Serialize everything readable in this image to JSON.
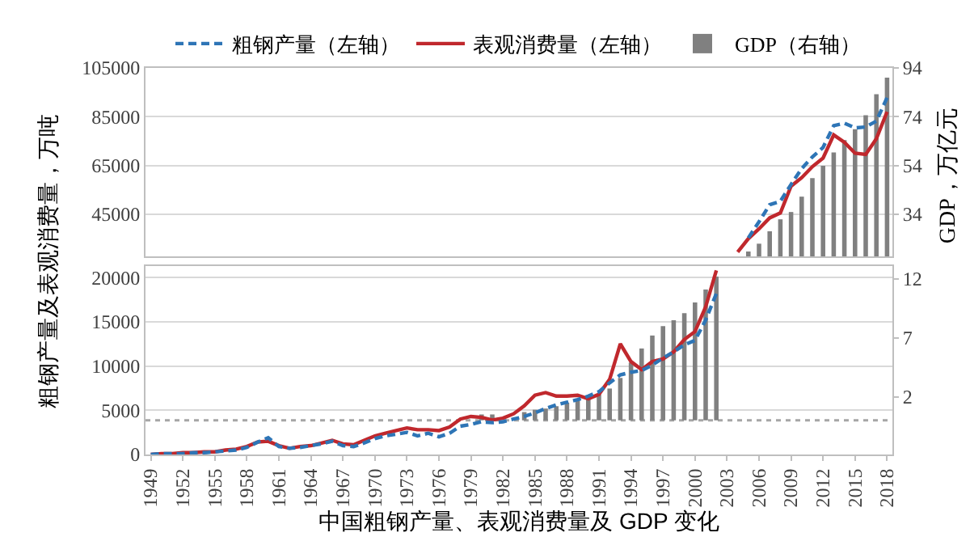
{
  "chart_data": [
    {
      "type": "line",
      "ylabel": "粗钢产量及表观消费量，万吨",
      "y2label": "GDP，万亿元",
      "legend": "top",
      "grid": "y",
      "tick_labels": "y",
      "categories": [
        "1949",
        null,
        null,
        "1952",
        null,
        null,
        "1955",
        null,
        null,
        "1958",
        null,
        null,
        "1961",
        null,
        null,
        "1964",
        null,
        null,
        "1967",
        null,
        null,
        "1970",
        null,
        null,
        "1973",
        null,
        null,
        "1976",
        null,
        null,
        "1979",
        null,
        null,
        "1982",
        null,
        null,
        "1985",
        null,
        null,
        "1988",
        null,
        null,
        "1991",
        null,
        null,
        "1994",
        null,
        null,
        "1997",
        null,
        null,
        "2000",
        null,
        null,
        "2003",
        null,
        null,
        "2006",
        null,
        null,
        "2009",
        null,
        null,
        "2012",
        null,
        null,
        "2015",
        null,
        null,
        "2018"
      ],
      "ylim": [
        27700,
        105000
      ],
      "yticks": [
        45000,
        65000,
        85000,
        105000
      ],
      "y2lim": [
        16.7,
        94
      ],
      "y2ticks": [
        34,
        54,
        74,
        94
      ],
      "series": [
        {
          "name": "粗钢产量（左轴）",
          "color": "#2e75b6",
          "line_style": "dashed",
          "values": [
            null,
            null,
            null,
            null,
            null,
            null,
            null,
            null,
            null,
            null,
            null,
            null,
            null,
            null,
            null,
            null,
            null,
            null,
            null,
            null,
            null,
            null,
            null,
            null,
            null,
            null,
            null,
            null,
            null,
            null,
            null,
            null,
            null,
            null,
            null,
            null,
            null,
            null,
            null,
            null,
            null,
            null,
            null,
            null,
            null,
            null,
            null,
            null,
            null,
            null,
            null,
            null,
            null,
            null,
            null,
            null,
            35300,
            41900,
            48900,
            50300,
            57200,
            63700,
            68500,
            72400,
            81300,
            82300,
            80400,
            80800,
            83200,
            92800
          ]
        },
        {
          "name": "表观消费量（左轴）",
          "color": "#c0282d",
          "line_style": "solid",
          "values": [
            null,
            null,
            null,
            null,
            null,
            null,
            null,
            null,
            null,
            null,
            null,
            null,
            null,
            null,
            null,
            null,
            null,
            null,
            null,
            null,
            null,
            null,
            null,
            null,
            null,
            null,
            null,
            null,
            null,
            null,
            null,
            null,
            null,
            null,
            null,
            null,
            null,
            null,
            null,
            null,
            null,
            null,
            null,
            null,
            null,
            null,
            null,
            null,
            null,
            null,
            null,
            null,
            null,
            null,
            null,
            29500,
            35000,
            39000,
            43500,
            45500,
            56500,
            60000,
            64500,
            68000,
            77500,
            74500,
            70000,
            69500,
            76000,
            87000
          ]
        },
        {
          "name": "GDP（右轴）",
          "type": "bar",
          "axis": "y2",
          "color": "#808080",
          "values": [
            null,
            null,
            null,
            null,
            null,
            null,
            null,
            null,
            null,
            null,
            null,
            null,
            null,
            null,
            null,
            null,
            null,
            null,
            null,
            null,
            null,
            null,
            null,
            null,
            null,
            null,
            null,
            null,
            null,
            null,
            null,
            null,
            null,
            null,
            null,
            null,
            null,
            null,
            null,
            null,
            null,
            null,
            null,
            null,
            null,
            null,
            null,
            null,
            null,
            null,
            null,
            null,
            null,
            null,
            null,
            null,
            18.7,
            21.9,
            27.0,
            31.9,
            34.9,
            41.2,
            48.8,
            53.9,
            59.3,
            64.4,
            68.9,
            74.6,
            83.2,
            90.0
          ]
        }
      ]
    },
    {
      "type": "line",
      "xlabel": "中国粗钢产量、表观消费量及 GDP 变化",
      "grid": "y",
      "categories": [
        "1949",
        null,
        null,
        "1952",
        null,
        null,
        "1955",
        null,
        null,
        "1958",
        null,
        null,
        "1961",
        null,
        null,
        "1964",
        null,
        null,
        "1967",
        null,
        null,
        "1970",
        null,
        null,
        "1973",
        null,
        null,
        "1976",
        null,
        null,
        "1979",
        null,
        null,
        "1982",
        null,
        null,
        "1985",
        null,
        null,
        "1988",
        null,
        null,
        "1991",
        null,
        null,
        "1994",
        null,
        null,
        "1997",
        null,
        null,
        "2000",
        null,
        null,
        "2003",
        null,
        null,
        "2006",
        null,
        null,
        "2009",
        null,
        null,
        "2012",
        null,
        null,
        "2015",
        null,
        null,
        "2018"
      ],
      "ylim": [
        0,
        21300
      ],
      "yticks": [
        0,
        5000,
        10000,
        15000,
        20000
      ],
      "y2lim": [
        -2.9,
        13.1
      ],
      "y2ticks": [
        2,
        7,
        12
      ],
      "ref_lines": [
        {
          "axis": "y2",
          "value": 0,
          "color": "#a6a6a6",
          "line_style": "dotted"
        }
      ],
      "series": [
        {
          "color": "#2e75b6",
          "line_style": "dashed",
          "values": [
            0,
            100,
            100,
            100,
            200,
            200,
            300,
            400,
            500,
            800,
            1400,
            1900,
            900,
            700,
            800,
            1000,
            1200,
            1500,
            1000,
            900,
            1300,
            1800,
            2100,
            2300,
            2500,
            2100,
            2400,
            2000,
            2400,
            3200,
            3400,
            3700,
            3600,
            3700,
            4000,
            4300,
            4700,
            5200,
            5600,
            5900,
            6200,
            6600,
            7100,
            8100,
            9000,
            9300,
            9500,
            10100,
            10900,
            11600,
            12400,
            12900,
            15200,
            18200,
            null,
            null,
            null,
            null,
            null,
            null,
            null,
            null,
            null,
            null,
            null,
            null,
            null,
            null,
            null,
            null
          ]
        },
        {
          "color": "#c0282d",
          "line_style": "solid",
          "values": [
            0,
            100,
            100,
            200,
            200,
            300,
            300,
            500,
            600,
            900,
            1400,
            1500,
            1000,
            700,
            900,
            1000,
            1300,
            1600,
            1200,
            1100,
            1600,
            2100,
            2400,
            2700,
            3000,
            2800,
            2800,
            2700,
            3100,
            4000,
            4300,
            4200,
            3900,
            4100,
            4600,
            5500,
            6700,
            7000,
            6600,
            6600,
            6700,
            6300,
            6800,
            8500,
            12500,
            10500,
            9600,
            10500,
            10800,
            11600,
            13000,
            13900,
            16700,
            20800,
            null,
            null,
            null,
            null,
            null,
            null,
            null,
            null,
            null,
            null,
            null,
            null,
            null,
            null,
            null,
            null
          ]
        },
        {
          "type": "bar",
          "axis": "y2",
          "color": "#808080",
          "values": [
            null,
            null,
            null,
            null,
            null,
            null,
            null,
            null,
            null,
            null,
            null,
            null,
            null,
            null,
            null,
            null,
            null,
            null,
            null,
            null,
            null,
            null,
            null,
            null,
            null,
            null,
            null,
            null,
            null,
            null,
            null,
            0.5,
            0.5,
            null,
            null,
            0.7,
            0.9,
            1.0,
            1.2,
            1.5,
            1.7,
            1.9,
            2.2,
            2.7,
            3.6,
            4.9,
            6.1,
            7.2,
            8.0,
            8.5,
            9.1,
            10.0,
            11.1,
            12.2,
            null,
            null,
            null,
            null,
            null,
            null,
            null,
            null,
            null,
            null,
            null,
            null,
            null,
            null,
            null,
            null
          ]
        }
      ]
    }
  ]
}
